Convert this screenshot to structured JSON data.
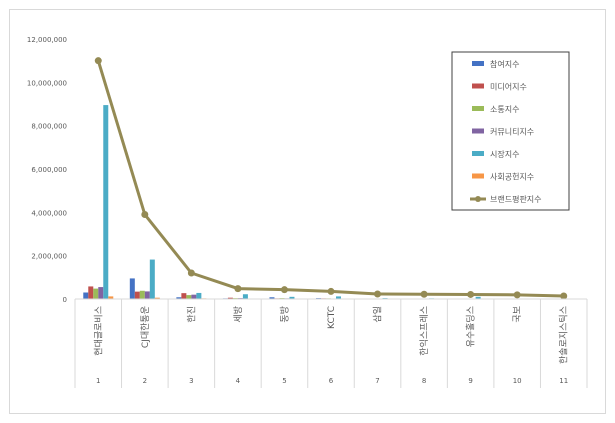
{
  "chart_data": {
    "type": "bar",
    "categories": [
      "1",
      "2",
      "3",
      "4",
      "5",
      "6",
      "7",
      "8",
      "9",
      "10",
      "11"
    ],
    "category_labels": [
      "현대글로비스",
      "CJ대한통운",
      "한진",
      "세방",
      "동방",
      "KCTC",
      "삼일",
      "한익스프레스",
      "유수홀딩스",
      "국보",
      "한솔로지스틱스"
    ],
    "ylim": [
      0,
      12000000
    ],
    "yticks": [
      "0",
      "2,000,000",
      "4,000,000",
      "6,000,000",
      "8,000,000",
      "10,000,000",
      "12,000,000"
    ],
    "grid": false,
    "legend_position": "top-right",
    "series": [
      {
        "name": "참여지수",
        "kind": "bar",
        "color": "#4472C4",
        "values": [
          300000,
          950000,
          80000,
          30000,
          80000,
          40000,
          5000,
          5000,
          5000,
          3000,
          3000
        ]
      },
      {
        "name": "미디어지수",
        "kind": "bar",
        "color": "#C0504D",
        "values": [
          580000,
          340000,
          270000,
          60000,
          30000,
          30000,
          10000,
          10000,
          10000,
          5000,
          5000
        ]
      },
      {
        "name": "소통지수",
        "kind": "bar",
        "color": "#9BBB59",
        "values": [
          480000,
          380000,
          180000,
          40000,
          40000,
          30000,
          5000,
          5000,
          5000,
          3000,
          3000
        ]
      },
      {
        "name": "커뮤니티지수",
        "kind": "bar",
        "color": "#8064A2",
        "values": [
          550000,
          350000,
          200000,
          40000,
          30000,
          20000,
          5000,
          5000,
          5000,
          3000,
          3000
        ]
      },
      {
        "name": "시장지수",
        "kind": "bar",
        "color": "#4BACC6",
        "values": [
          8950000,
          1820000,
          280000,
          220000,
          100000,
          120000,
          40000,
          30000,
          100000,
          20000,
          20000
        ]
      },
      {
        "name": "사회공헌지수",
        "kind": "bar",
        "color": "#F79646",
        "values": [
          120000,
          60000,
          30000,
          20000,
          20000,
          10000,
          5000,
          5000,
          5000,
          3000,
          3000
        ]
      },
      {
        "name": "브랜드평판지수",
        "kind": "line",
        "color": "#948A54",
        "values": [
          11000000,
          3900000,
          1200000,
          480000,
          430000,
          350000,
          230000,
          220000,
          210000,
          190000,
          140000
        ]
      }
    ]
  }
}
